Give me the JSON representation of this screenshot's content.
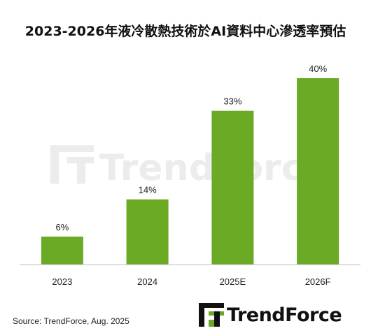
{
  "title": "2023-2026年液冷散熱技術於AI資料中心滲透率預估",
  "source": "Source: TrendForce, Aug. 2025",
  "watermark": "TrendForce",
  "logo_text": "TrendForce",
  "colors": {
    "bar": "#6aaa25",
    "axis": "#bdbdbd",
    "watermark": "#ececec"
  },
  "chart_data": {
    "type": "bar",
    "title": "2023-2026年液冷散熱技術於AI資料中心滲透率預估",
    "xlabel": "",
    "ylabel": "",
    "categories": [
      "2023",
      "2024",
      "2025E",
      "2026F"
    ],
    "values": [
      6,
      14,
      33,
      40
    ],
    "data_labels": [
      "6%",
      "14%",
      "33%",
      "40%"
    ],
    "ylim": [
      0,
      40
    ],
    "grid": false,
    "legend": "none"
  }
}
